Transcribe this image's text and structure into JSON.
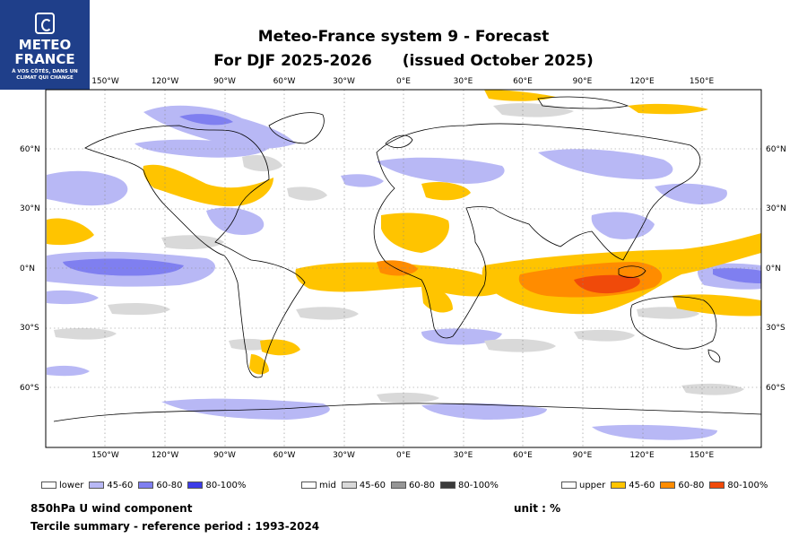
{
  "logo": {
    "line1": "METEO",
    "line2": "FRANCE",
    "tagline1": "À VOS CÔTÉS, DANS UN",
    "tagline2": "CLIMAT QUI CHANGE"
  },
  "title": {
    "line1": "Meteo-France system 9  -  Forecast",
    "line2a": "For DJF 2025-2026",
    "line2b": "(issued October 2025)"
  },
  "axes": {
    "lon_ticks": [
      "150°W",
      "120°W",
      "90°W",
      "60°W",
      "30°W",
      "0°E",
      "30°E",
      "60°E",
      "90°E",
      "120°E",
      "150°E"
    ],
    "lon_values": [
      -150,
      -120,
      -90,
      -60,
      -30,
      0,
      30,
      60,
      90,
      120,
      150
    ],
    "lat_ticks": [
      "60°N",
      "30°N",
      "0°N",
      "30°S",
      "60°S"
    ],
    "lat_values": [
      60,
      30,
      0,
      -30,
      -60
    ]
  },
  "legend": {
    "lower": {
      "label": "lower",
      "items": [
        "45-60",
        "60-80",
        "80-100%"
      ],
      "colors": [
        "#ffffff",
        "#b8b8f5",
        "#7f7ff0",
        "#3c3ce8"
      ]
    },
    "mid": {
      "label": "mid",
      "items": [
        "45-60",
        "60-80",
        "80-100%"
      ],
      "colors": [
        "#ffffff",
        "#d9d9d9",
        "#969696",
        "#3a3a3a"
      ]
    },
    "upper": {
      "label": "upper",
      "items": [
        "45-60",
        "60-80",
        "80-100%"
      ],
      "colors": [
        "#ffffff",
        "#ffc400",
        "#ff8c00",
        "#f04a0a"
      ]
    }
  },
  "footer": {
    "variable": "850hPa U wind component",
    "unit": "unit : %",
    "summary": "Tercile summary - reference period : 1993-2024"
  }
}
